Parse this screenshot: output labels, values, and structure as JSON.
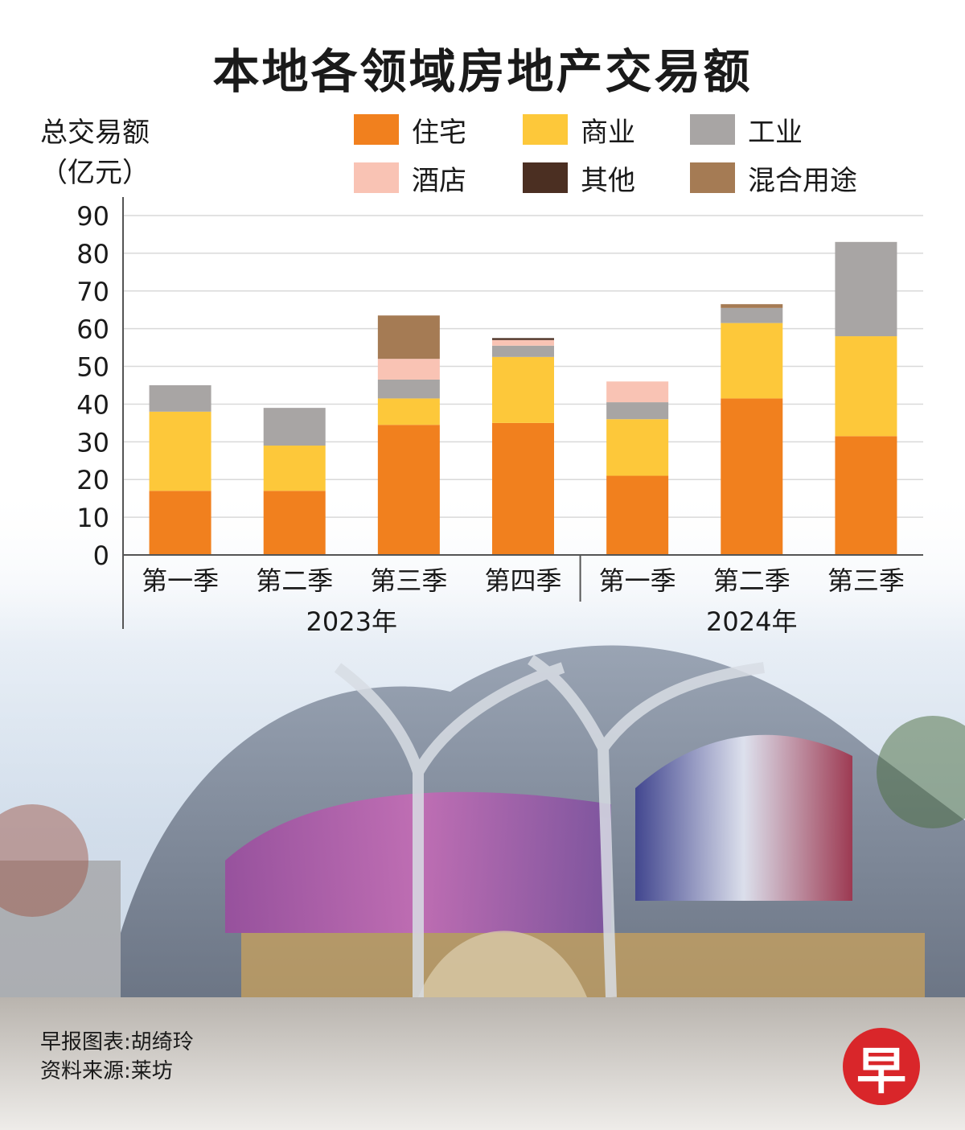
{
  "title": "本地各领域房地产交易额",
  "ylabel_line1": "总交易额",
  "ylabel_line2": "（亿元）",
  "credit_line1": "早报图表:胡绮玲",
  "credit_line2": "资料来源:莱坊",
  "logo_text": "早",
  "colors": {
    "residential": "#f1801e",
    "commercial": "#fdc83a",
    "industrial": "#a8a5a4",
    "hotel": "#f9c3b4",
    "other": "#4b2f22",
    "mixed": "#a57b54"
  },
  "chart_data": {
    "type": "bar",
    "stacked": true,
    "ylim": [
      0,
      90
    ],
    "yticks": [
      0,
      10,
      20,
      30,
      40,
      50,
      60,
      70,
      80,
      90
    ],
    "grid": true,
    "legend_position": "top",
    "categories": [
      "第一季",
      "第二季",
      "第三季",
      "第四季",
      "第一季",
      "第二季",
      "第三季"
    ],
    "groups": [
      {
        "label": "2023年",
        "count": 4
      },
      {
        "label": "2024年",
        "count": 3
      }
    ],
    "series": [
      {
        "name": "住宅",
        "key": "residential",
        "values": [
          17,
          17,
          34.5,
          35,
          21,
          41.5,
          31.5
        ]
      },
      {
        "name": "商业",
        "key": "commercial",
        "values": [
          21,
          12,
          7,
          17.5,
          15,
          20,
          26.5
        ]
      },
      {
        "name": "工业",
        "key": "industrial",
        "values": [
          7,
          10,
          5,
          3,
          4.5,
          4,
          25
        ]
      },
      {
        "name": "酒店",
        "key": "hotel",
        "values": [
          0,
          0,
          5.5,
          1.5,
          5.5,
          0,
          0
        ]
      },
      {
        "name": "其他",
        "key": "other",
        "values": [
          0,
          0,
          0,
          0.5,
          0,
          0,
          0
        ]
      },
      {
        "name": "混合用途",
        "key": "mixed",
        "values": [
          0,
          0,
          11.5,
          0,
          0,
          1,
          0
        ]
      }
    ]
  }
}
